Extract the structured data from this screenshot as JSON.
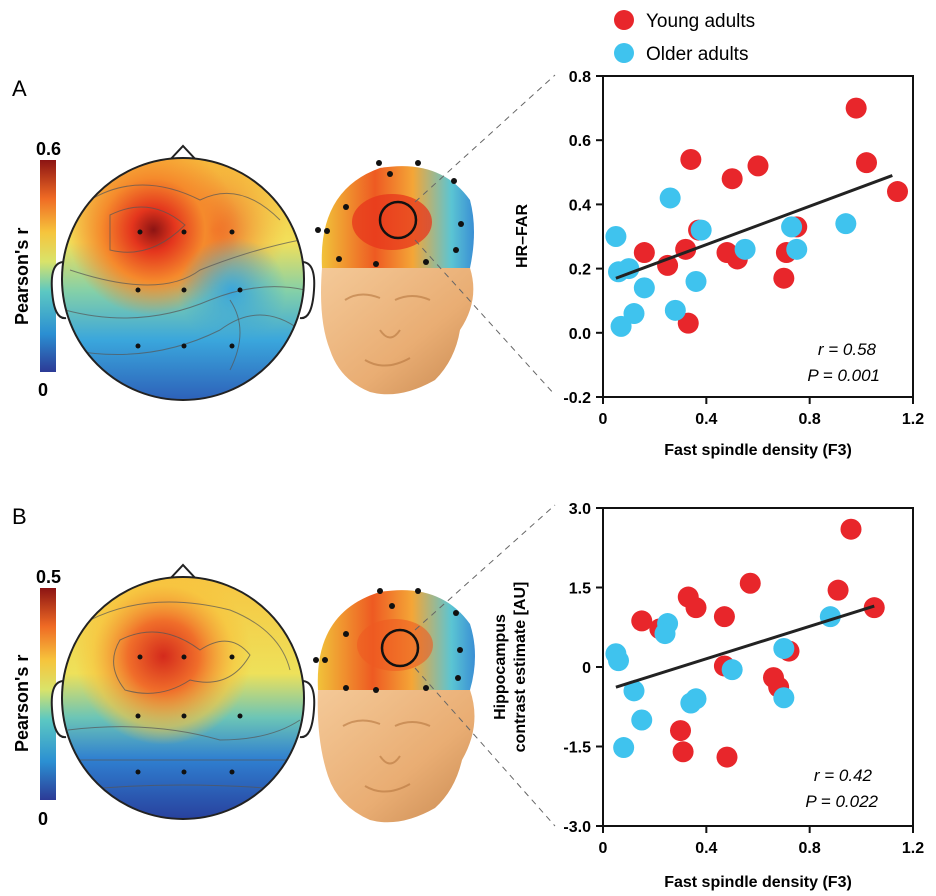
{
  "legend": [
    {
      "label": "Young adults",
      "color": "#e8262b"
    },
    {
      "label": "Older adults",
      "color": "#3fc3ee"
    }
  ],
  "panels": [
    {
      "letter": "A",
      "colorbar": {
        "label": "Pearson's r",
        "max_label": "0.6",
        "min_label": "0"
      },
      "head_icon": "head-3d-render-icon",
      "stats": {
        "r": "r = 0.58",
        "p": "P = 0.001"
      }
    },
    {
      "letter": "B",
      "colorbar": {
        "label": "Pearson's r",
        "max_label": "0.5",
        "min_label": "0"
      },
      "head_icon": "head-3d-render-icon",
      "stats": {
        "r": "r = 0.42",
        "p": "P = 0.022"
      }
    }
  ],
  "chart_data": [
    {
      "type": "scatter",
      "xlabel": "Fast spindle density (F3)",
      "ylabel": "HR–FAR",
      "xlim": [
        0,
        1.2
      ],
      "ylim": [
        -0.2,
        0.8
      ],
      "xticks": [
        "0",
        "0.4",
        "0.8",
        "1.2"
      ],
      "xtick_values": [
        0,
        0.4,
        0.8,
        1.2
      ],
      "yticks": [
        "0.8",
        "0.6",
        "0.4",
        "0.2",
        "0.0",
        "-0.2"
      ],
      "ytick_values": [
        0.8,
        0.6,
        0.4,
        0.2,
        0.0,
        -0.2
      ],
      "fit_line": [
        [
          0.05,
          0.17
        ],
        [
          1.12,
          0.49
        ]
      ],
      "series": [
        {
          "name": "Young adults",
          "color": "#e8262b",
          "points": [
            [
              0.34,
              0.54
            ],
            [
              0.5,
              0.48
            ],
            [
              0.6,
              0.52
            ],
            [
              0.98,
              0.7
            ],
            [
              1.02,
              0.53
            ],
            [
              1.14,
              0.44
            ],
            [
              0.37,
              0.32
            ],
            [
              0.75,
              0.33
            ],
            [
              0.32,
              0.26
            ],
            [
              0.48,
              0.25
            ],
            [
              0.52,
              0.23
            ],
            [
              0.71,
              0.25
            ],
            [
              0.16,
              0.25
            ],
            [
              0.25,
              0.21
            ],
            [
              0.7,
              0.17
            ],
            [
              0.33,
              0.03
            ]
          ]
        },
        {
          "name": "Older adults",
          "color": "#3fc3ee",
          "points": [
            [
              0.05,
              0.3
            ],
            [
              0.26,
              0.42
            ],
            [
              0.38,
              0.32
            ],
            [
              0.55,
              0.26
            ],
            [
              0.73,
              0.33
            ],
            [
              0.94,
              0.34
            ],
            [
              0.75,
              0.26
            ],
            [
              0.06,
              0.19
            ],
            [
              0.1,
              0.2
            ],
            [
              0.36,
              0.16
            ],
            [
              0.16,
              0.14
            ],
            [
              0.28,
              0.07
            ],
            [
              0.12,
              0.06
            ],
            [
              0.07,
              0.02
            ]
          ]
        }
      ]
    },
    {
      "type": "scatter",
      "xlabel": "Fast spindle density (F3)",
      "ylabel": "Hippocampus contrast estimate [AU]",
      "ylabel_lines": [
        "Hippocampus",
        "contrast estimate [AU]"
      ],
      "xlim": [
        0,
        1.2
      ],
      "ylim": [
        -3.0,
        3.0
      ],
      "xticks": [
        "0",
        "0.4",
        "0.8",
        "1.2"
      ],
      "xtick_values": [
        0,
        0.4,
        0.8,
        1.2
      ],
      "yticks": [
        "3.0",
        "1.5",
        "0",
        "-1.5",
        "-3.0"
      ],
      "ytick_values": [
        3.0,
        1.5,
        0,
        -1.5,
        -3.0
      ],
      "fit_line": [
        [
          0.05,
          -0.38
        ],
        [
          1.05,
          1.15
        ]
      ],
      "series": [
        {
          "name": "Young adults",
          "color": "#e8262b",
          "points": [
            [
              0.96,
              2.6
            ],
            [
              0.91,
              1.45
            ],
            [
              0.57,
              1.58
            ],
            [
              0.33,
              1.32
            ],
            [
              0.36,
              1.12
            ],
            [
              0.15,
              0.87
            ],
            [
              0.22,
              0.72
            ],
            [
              0.47,
              0.95
            ],
            [
              1.05,
              1.12
            ],
            [
              0.47,
              0.02
            ],
            [
              0.66,
              -0.2
            ],
            [
              0.68,
              -0.38
            ],
            [
              0.72,
              0.3
            ],
            [
              0.3,
              -1.2
            ],
            [
              0.31,
              -1.6
            ],
            [
              0.48,
              -1.7
            ]
          ]
        },
        {
          "name": "Older adults",
          "color": "#3fc3ee",
          "points": [
            [
              0.05,
              0.25
            ],
            [
              0.06,
              0.12
            ],
            [
              0.25,
              0.82
            ],
            [
              0.24,
              0.63
            ],
            [
              0.12,
              -0.45
            ],
            [
              0.36,
              -0.6
            ],
            [
              0.34,
              -0.68
            ],
            [
              0.5,
              -0.05
            ],
            [
              0.7,
              0.35
            ],
            [
              0.7,
              -0.58
            ],
            [
              0.88,
              0.95
            ],
            [
              0.15,
              -1.0
            ],
            [
              0.08,
              -1.52
            ]
          ]
        }
      ]
    }
  ]
}
